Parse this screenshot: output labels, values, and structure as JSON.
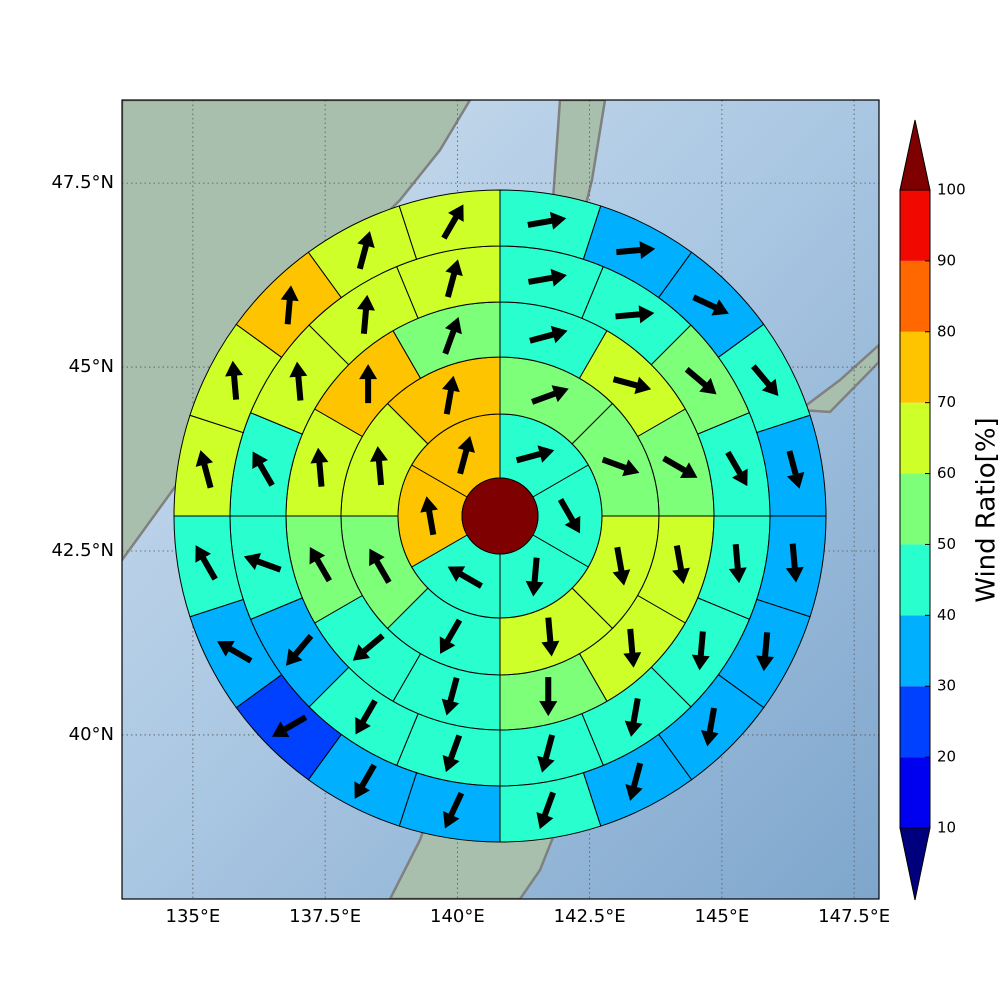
{
  "chart_data": {
    "type": "polar-sector-map",
    "xlim": [
      133.66,
      147.97
    ],
    "ylim": [
      37.77,
      48.63
    ],
    "xticks": [
      {
        "value": 135,
        "label": "135°E"
      },
      {
        "value": 137.5,
        "label": "137.5°E"
      },
      {
        "value": 140,
        "label": "140°E"
      },
      {
        "value": 142.5,
        "label": "142.5°E"
      },
      {
        "value": 145,
        "label": "145°E"
      },
      {
        "value": 147.5,
        "label": "147.5°E"
      }
    ],
    "yticks": [
      {
        "value": 40,
        "label": "40°N"
      },
      {
        "value": 42.5,
        "label": "42.5°N"
      },
      {
        "value": 45,
        "label": "45°N"
      },
      {
        "value": 47.5,
        "label": "47.5°N"
      }
    ],
    "grid": true,
    "center": {
      "value": 105
    },
    "rings": [
      {
        "values": [
          45,
          45,
          45,
          45,
          75,
          75
        ],
        "directions": [
          75,
          150,
          185,
          300,
          350,
          15
        ]
      },
      {
        "values": [
          55,
          55,
          65,
          65,
          45,
          55,
          65,
          75
        ],
        "directions": [
          70,
          110,
          170,
          175,
          210,
          330,
          355,
          10
        ]
      },
      {
        "values": [
          45,
          65,
          55,
          65,
          65,
          55,
          45,
          45,
          55,
          65,
          75,
          55
        ],
        "directions": [
          75,
          105,
          120,
          170,
          175,
          180,
          195,
          230,
          330,
          355,
          0,
          20
        ]
      },
      {
        "values": [
          45,
          45,
          55,
          45,
          45,
          45,
          45,
          45,
          45,
          45,
          35,
          45,
          45,
          65,
          65,
          65
        ],
        "directions": [
          80,
          85,
          130,
          150,
          175,
          185,
          190,
          195,
          200,
          210,
          220,
          290,
          330,
          355,
          5,
          15
        ]
      },
      {
        "values": [
          45,
          35,
          35,
          45,
          35,
          35,
          35,
          35,
          35,
          45,
          35,
          35,
          25,
          35,
          45,
          65,
          65,
          75,
          65,
          65
        ],
        "directions": [
          80,
          85,
          115,
          140,
          165,
          175,
          185,
          190,
          195,
          200,
          205,
          210,
          240,
          300,
          330,
          345,
          355,
          5,
          15,
          30
        ]
      }
    ],
    "colorbar": {
      "label": "Wind Ratio[%]",
      "ticks": [
        10,
        20,
        30,
        40,
        50,
        60,
        70,
        80,
        90,
        100
      ],
      "colors": [
        "#0000f1",
        "#0040ff",
        "#00b0ff",
        "#29ffce",
        "#7dff7a",
        "#ceff29",
        "#ffc400",
        "#ff6800",
        "#f10800"
      ],
      "under_color": "#00007f",
      "over_color": "#7f0000"
    }
  }
}
